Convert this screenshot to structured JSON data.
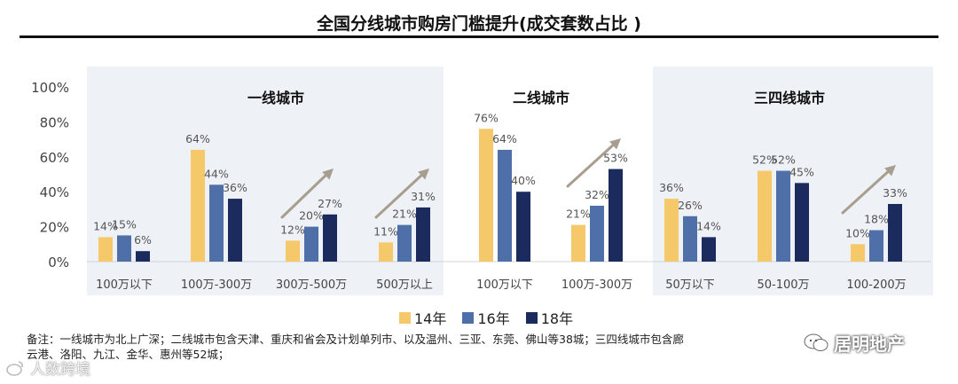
{
  "title": "全国分线城市购房门槛提升(成交套数占比 )",
  "legend": [
    {
      "label": "14年",
      "color": "#F5C96A"
    },
    {
      "label": "16年",
      "color": "#4F6FA8"
    },
    {
      "label": "18年",
      "color": "#1B2B5E"
    }
  ],
  "chart_data": {
    "type": "bar",
    "ylim": [
      0,
      100
    ],
    "y_ticks": [
      "0%",
      "20%",
      "40%",
      "60%",
      "80%",
      "100%"
    ],
    "panels": [
      {
        "title": "一线城市",
        "categories": [
          "100万以下",
          "100万-300万",
          "300万-500万",
          "500万以上"
        ]
      },
      {
        "title": "二线城市",
        "categories": [
          "100万以下",
          "100万-300万"
        ]
      },
      {
        "title": "三四线城市",
        "categories": [
          "50万以下",
          "50-100万",
          "100-200万"
        ]
      }
    ],
    "categories": [
      "100万以下",
      "100万-300万",
      "300万-500万",
      "500万以上",
      "100万以下",
      "100万-300万",
      "50万以下",
      "50-100万",
      "100-200万"
    ],
    "series": [
      {
        "name": "14年",
        "values": [
          14,
          64,
          12,
          11,
          76,
          21,
          36,
          52,
          10
        ]
      },
      {
        "name": "16年",
        "values": [
          15,
          44,
          20,
          21,
          64,
          32,
          26,
          52,
          18
        ]
      },
      {
        "name": "18年",
        "values": [
          6,
          36,
          27,
          31,
          40,
          53,
          14,
          45,
          33
        ]
      }
    ]
  },
  "note": {
    "line1": "备注：一线城市为北上广深；二线城市包含天津、重庆和省会及计划单列市、以及温州、三亚、东莞、佛山等38城；三四线城市包含廊",
    "line2": "云港、洛阳、九江、金华、惠州等52城；"
  },
  "brand": {
    "name": "居明地产"
  },
  "watermark": {
    "text": "人数跨境"
  }
}
